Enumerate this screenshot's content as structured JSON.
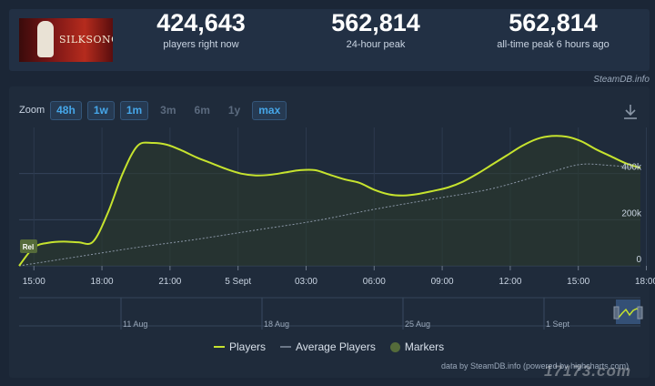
{
  "game": {
    "banner_text": "SILKSONG"
  },
  "stats": {
    "current": {
      "value": "424,643",
      "label": "players right now"
    },
    "peak_24h": {
      "value": "562,814",
      "label": "24-hour peak"
    },
    "all_time": {
      "value": "562,814",
      "label": "all-time peak 6 hours ago"
    }
  },
  "credit_top": "SteamDB.info",
  "zoom": {
    "label": "Zoom",
    "buttons": [
      {
        "label": "48h",
        "enabled": true
      },
      {
        "label": "1w",
        "enabled": true
      },
      {
        "label": "1m",
        "enabled": true
      },
      {
        "label": "3m",
        "enabled": false
      },
      {
        "label": "6m",
        "enabled": false
      },
      {
        "label": "1y",
        "enabled": false
      },
      {
        "label": "max",
        "enabled": true
      }
    ]
  },
  "icons": {
    "download": "download-icon",
    "marker": "marker-icon"
  },
  "marker_label": "Rel",
  "colors": {
    "players": "#c6e32e",
    "average": "#8a96a6",
    "marker": "#556b3a",
    "accent": "#46a6e8"
  },
  "chart_data": {
    "type": "line",
    "x_ticks": [
      "15:00",
      "18:00",
      "21:00",
      "5 Sept",
      "03:00",
      "06:00",
      "09:00",
      "12:00",
      "15:00",
      "18:00"
    ],
    "y_ticks": [
      "0",
      "200k",
      "400k"
    ],
    "ylim": [
      0,
      600000
    ],
    "series": [
      {
        "name": "Players",
        "values": [
          [
            0,
            0
          ],
          [
            1,
            80000
          ],
          [
            2,
            100000
          ],
          [
            3,
            105000
          ],
          [
            4,
            102000
          ],
          [
            5,
            105000
          ],
          [
            6,
            230000
          ],
          [
            7,
            400000
          ],
          [
            8,
            520000
          ],
          [
            9,
            533000
          ],
          [
            10,
            525000
          ],
          [
            11,
            500000
          ],
          [
            12,
            470000
          ],
          [
            13,
            445000
          ],
          [
            14,
            420000
          ],
          [
            15,
            400000
          ],
          [
            16,
            392000
          ],
          [
            17,
            395000
          ],
          [
            18,
            405000
          ],
          [
            19,
            415000
          ],
          [
            20,
            415000
          ],
          [
            21,
            395000
          ],
          [
            22,
            375000
          ],
          [
            23,
            360000
          ],
          [
            24,
            330000
          ],
          [
            25,
            310000
          ],
          [
            26,
            305000
          ],
          [
            27,
            312000
          ],
          [
            28,
            325000
          ],
          [
            29,
            340000
          ],
          [
            30,
            365000
          ],
          [
            31,
            400000
          ],
          [
            32,
            440000
          ],
          [
            33,
            480000
          ],
          [
            34,
            520000
          ],
          [
            35,
            550000
          ],
          [
            36,
            562814
          ],
          [
            37,
            560000
          ],
          [
            38,
            540000
          ],
          [
            39,
            505000
          ],
          [
            40,
            475000
          ],
          [
            41,
            445000
          ],
          [
            42,
            424643
          ]
        ]
      },
      {
        "name": "Average Players",
        "values": [
          [
            0,
            0
          ],
          [
            4,
            40000
          ],
          [
            8,
            80000
          ],
          [
            12,
            115000
          ],
          [
            16,
            155000
          ],
          [
            20,
            195000
          ],
          [
            24,
            245000
          ],
          [
            28,
            290000
          ],
          [
            32,
            335000
          ],
          [
            36,
            408000
          ],
          [
            38,
            440000
          ],
          [
            40,
            435000
          ],
          [
            42,
            424000
          ]
        ]
      }
    ],
    "navigator_labels": [
      "11 Aug",
      "18 Aug",
      "25 Aug",
      "1 Sept"
    ]
  },
  "legend": {
    "players": "Players",
    "average": "Average Players",
    "markers": "Markers"
  },
  "credit_bottom": "data by SteamDB.info (powered by highcharts.com)",
  "watermark": "17173.com"
}
